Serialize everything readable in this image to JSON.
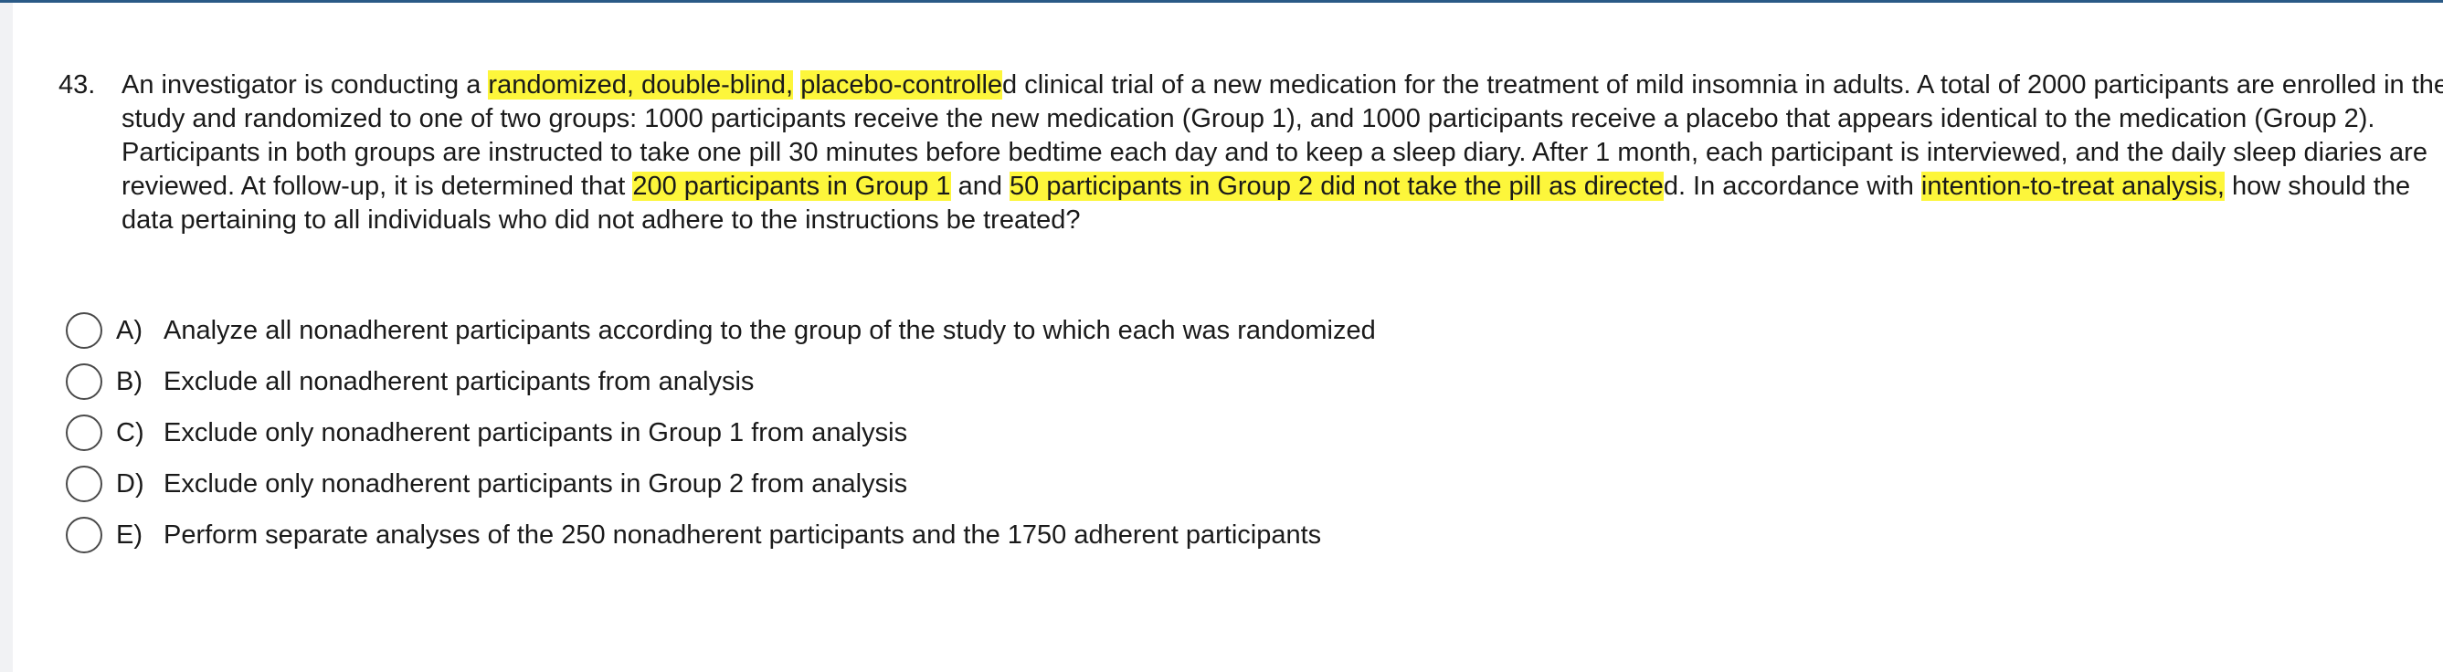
{
  "question": {
    "number": "43.",
    "segments": [
      {
        "text": "An investigator is conducting a ",
        "highlight": false
      },
      {
        "text": "randomized, double-blind,",
        "highlight": true
      },
      {
        "text": " ",
        "highlight": false
      },
      {
        "text": "placebo-controlle",
        "highlight": true
      },
      {
        "text": "d clinical trial of a new medication for the treatment of mild insomnia in adults. A total of 2000 participants are enrolled in the study and randomized to one of two groups: 1000 participants receive the new medication (Group 1), and 1000 participants receive a placebo that appears identical to the medication (Group 2). Participants in both groups are instructed to take one pill 30 minutes before bedtime each day and to keep a sleep diary. After 1 month, each participant is interviewed, and the daily sleep diaries are reviewed. At follow-up, it is determined that ",
        "highlight": false
      },
      {
        "text": "200 participants in Group 1",
        "highlight": true
      },
      {
        "text": " and ",
        "highlight": false
      },
      {
        "text": "50 participants in Group 2 did not take the pill as directe",
        "highlight": true
      },
      {
        "text": "d. In accordance with ",
        "highlight": false
      },
      {
        "text": "intention-to-treat analysis,",
        "highlight": true
      },
      {
        "text": " how should the data pertaining to all individuals who did not adhere to the instructions be treated?",
        "highlight": false
      }
    ],
    "highlight_color": "#fdf63b"
  },
  "options": [
    {
      "letter": "A)",
      "text": "Analyze all nonadherent participants according to the group of the study to which each was randomized"
    },
    {
      "letter": "B)",
      "text": "Exclude all nonadherent participants from analysis"
    },
    {
      "letter": "C)",
      "text": "Exclude only nonadherent participants in Group 1 from analysis"
    },
    {
      "letter": "D)",
      "text": "Exclude only nonadherent participants in Group 2 from analysis"
    },
    {
      "letter": "E)",
      "text": "Perform separate analyses of the 250 nonadherent participants and the 1750 adherent participants"
    }
  ],
  "colors": {
    "top_border": "#2a5a86",
    "left_gutter": "#f1f2f4",
    "radio_border": "#4a4a4a"
  }
}
